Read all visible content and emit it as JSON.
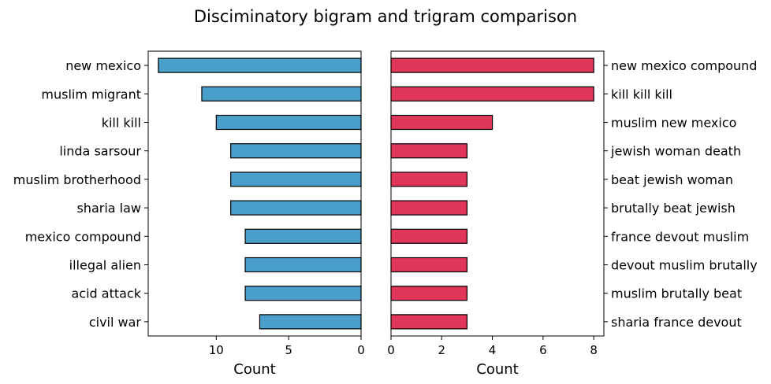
{
  "chart_data": [
    {
      "type": "bar",
      "orientation": "horizontal",
      "inverted_x": true,
      "title": "Disciminatory bigram and trigram comparison",
      "categories": [
        "new mexico",
        "muslim migrant",
        "kill kill",
        "linda sarsour",
        "muslim brotherhood",
        "sharia law",
        "mexico compound",
        "illegal alien",
        "acid attack",
        "civil war"
      ],
      "values": [
        14,
        11,
        10,
        9,
        9,
        9,
        8,
        8,
        8,
        7
      ],
      "xlabel": "Count",
      "ylabel": "",
      "xlim": [
        0,
        14.7
      ],
      "xticks": [
        "10",
        "5",
        "0"
      ],
      "color": "#4a9fca",
      "tick_labels_side": "left"
    },
    {
      "type": "bar",
      "orientation": "horizontal",
      "inverted_x": false,
      "categories": [
        "new mexico compound",
        "kill kill kill",
        "muslim new mexico",
        "jewish woman death",
        "beat jewish woman",
        "brutally beat jewish",
        "france devout muslim",
        "devout muslim brutally",
        "muslim brutally beat",
        "sharia france devout"
      ],
      "values": [
        8,
        8,
        4,
        3,
        3,
        3,
        3,
        3,
        3,
        3
      ],
      "xlabel": "Count",
      "ylabel": "",
      "xlim": [
        0,
        8.4
      ],
      "xticks": [
        "0",
        "2",
        "4",
        "6",
        "8"
      ],
      "color": "#e0365a",
      "tick_labels_side": "right"
    }
  ]
}
